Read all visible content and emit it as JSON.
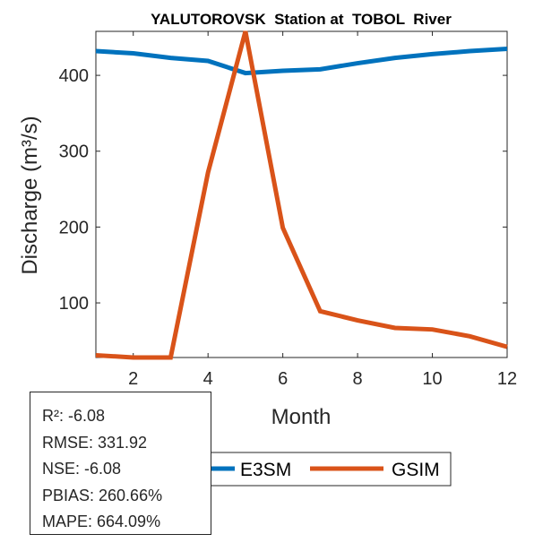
{
  "chart_data": {
    "type": "line",
    "title": "YALUTOROVSK  Station at  TOBOL  River",
    "xlabel": "Month",
    "ylabel": "Discharge (m³/s)",
    "x": [
      1,
      2,
      3,
      4,
      5,
      6,
      7,
      8,
      9,
      10,
      11,
      12
    ],
    "xlim": [
      1,
      12
    ],
    "ylim": [
      28,
      458
    ],
    "xticks": [
      2,
      4,
      6,
      8,
      10,
      12
    ],
    "yticks": [
      100,
      200,
      300,
      400
    ],
    "grid": false,
    "legend_position": "bottom-center-outside",
    "series": [
      {
        "name": "E3SM",
        "color": "#0072BD",
        "values": [
          432,
          429,
          423,
          419,
          403,
          406,
          408,
          416,
          423,
          428,
          432,
          435
        ]
      },
      {
        "name": "GSIM",
        "color": "#D95319",
        "values": [
          31,
          28,
          28,
          272,
          458,
          199,
          89,
          77,
          67,
          65,
          56,
          42
        ]
      }
    ]
  },
  "stats": [
    "R²: -6.08",
    "RMSE: 331.92",
    "NSE: -6.08",
    "PBIAS: 260.66%",
    "MAPE: 664.09%"
  ]
}
